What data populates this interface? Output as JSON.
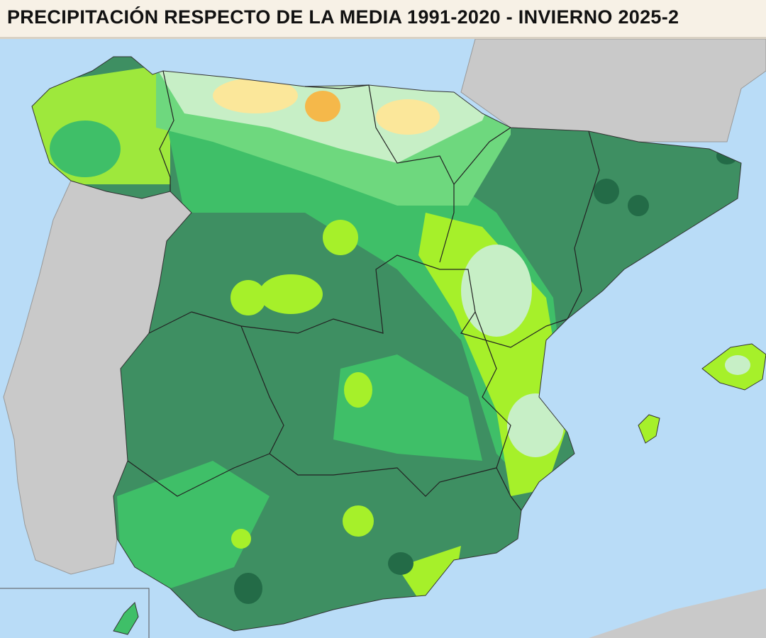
{
  "header": {
    "title": "PRECIPITACIÓN RESPECTO DE LA MEDIA 1991-2020 - INVIERNO 2025-2"
  }
}
